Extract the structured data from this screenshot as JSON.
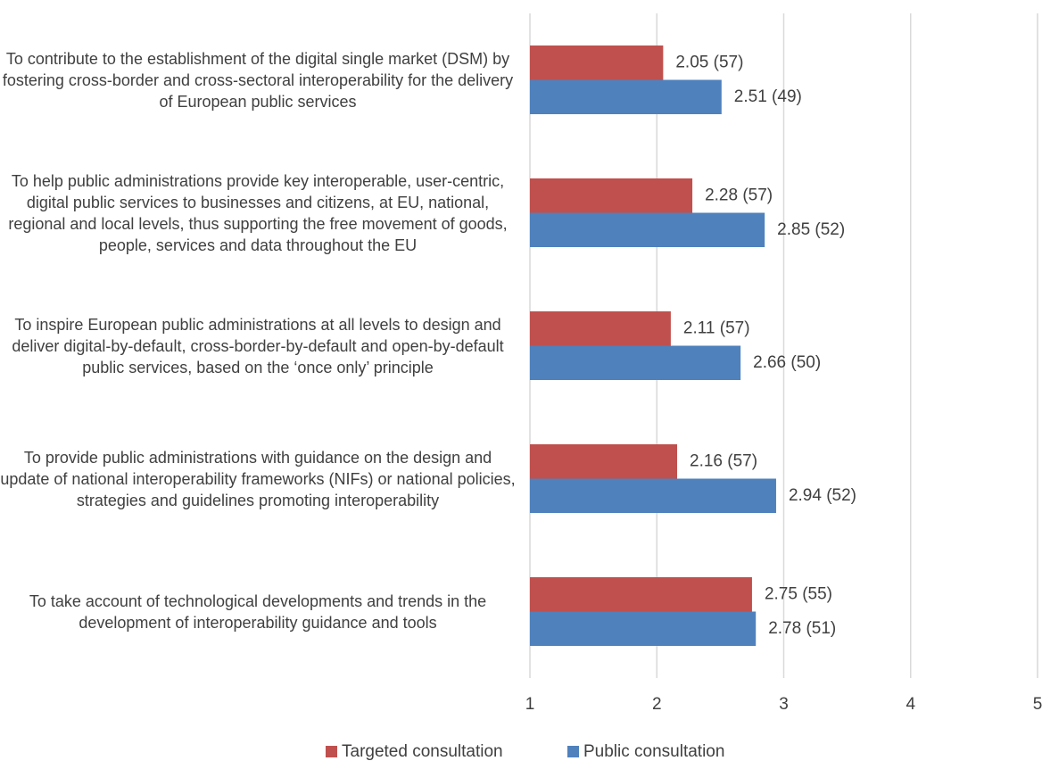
{
  "chart_data": {
    "type": "hbar",
    "categories": [
      "To contribute to the establishment of the digital single market (DSM) by fostering cross-border and cross-sectoral interoperability for the delivery of European public services",
      "To help public administrations provide key interoperable, user-centric, digital public services to businesses and citizens, at EU, national, regional and local levels, thus supporting the free movement of goods, people, services and data throughout the EU",
      "To inspire European public administrations at all levels to design and deliver digital-by-default, cross-border-by-default and open-by-default public services, based on the ‘once only’ principle",
      "To provide public administrations with guidance on the design and update of national interoperability frameworks (NIFs) or national policies, strategies and guidelines promoting interoperability",
      "To take account of technological developments and trends in the development of interoperability guidance and tools"
    ],
    "series": [
      {
        "name": "Targeted consultation",
        "color": "#c0504d",
        "values": [
          2.05,
          2.28,
          2.11,
          2.16,
          2.75
        ],
        "value_labels": [
          "2.05 (57)",
          "2.28 (57)",
          "2.11 (57)",
          "2.16 (57)",
          "2.75 (55)"
        ]
      },
      {
        "name": "Public consultation",
        "color": "#4f81bd",
        "values": [
          2.51,
          2.85,
          2.66,
          2.94,
          2.78
        ],
        "value_labels": [
          "2.51 (49)",
          "2.85 (52)",
          "2.66 (50)",
          "2.94 (52)",
          "2.78 (51)"
        ]
      }
    ],
    "xlim": [
      1,
      5
    ],
    "xticks": [
      1,
      2,
      3,
      4,
      5
    ],
    "grid": true,
    "legend": "bottom"
  }
}
